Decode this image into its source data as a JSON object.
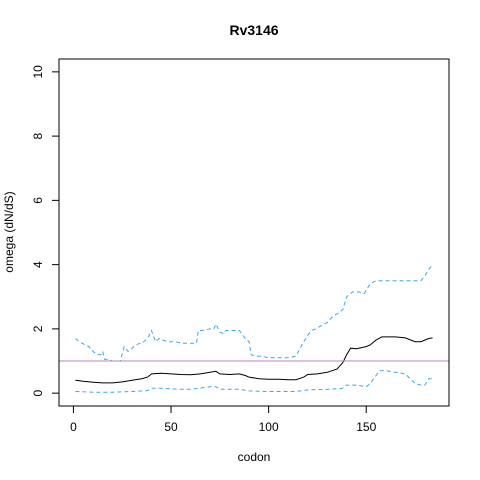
{
  "chart_data": {
    "type": "line",
    "title": "Rv3146",
    "xlabel": "codon",
    "ylabel": "omega (dN/dS)",
    "xlim": [
      0,
      185
    ],
    "ylim": [
      0,
      10
    ],
    "x_ticks": [
      0,
      50,
      100,
      150
    ],
    "y_ticks": [
      0,
      2,
      4,
      6,
      8,
      10
    ],
    "reference_line": {
      "y": 1,
      "color": "#c080c0"
    },
    "series": [
      {
        "style": "dashed",
        "color": "#3ea8e0",
        "points": [
          [
            1,
            1.7
          ],
          [
            3,
            1.6
          ],
          [
            6,
            1.5
          ],
          [
            8,
            1.45
          ],
          [
            10,
            1.3
          ],
          [
            12,
            1.2
          ],
          [
            14,
            1.2
          ],
          [
            15,
            1.3
          ],
          [
            16,
            1.05
          ],
          [
            18,
            1.05
          ],
          [
            20,
            1.0
          ],
          [
            22,
            1.0
          ],
          [
            24,
            1.0
          ],
          [
            26,
            1.45
          ],
          [
            28,
            1.3
          ],
          [
            30,
            1.4
          ],
          [
            32,
            1.5
          ],
          [
            34,
            1.55
          ],
          [
            36,
            1.6
          ],
          [
            38,
            1.7
          ],
          [
            40,
            1.95
          ],
          [
            42,
            1.6
          ],
          [
            44,
            1.7
          ],
          [
            46,
            1.65
          ],
          [
            48,
            1.6
          ],
          [
            52,
            1.6
          ],
          [
            56,
            1.55
          ],
          [
            60,
            1.55
          ],
          [
            63,
            1.55
          ],
          [
            64,
            1.95
          ],
          [
            66,
            1.95
          ],
          [
            70,
            2.0
          ],
          [
            72,
            2.0
          ],
          [
            73,
            2.15
          ],
          [
            75,
            1.9
          ],
          [
            77,
            1.85
          ],
          [
            78,
            1.95
          ],
          [
            80,
            1.95
          ],
          [
            82,
            1.95
          ],
          [
            85,
            1.95
          ],
          [
            88,
            1.7
          ],
          [
            90,
            1.6
          ],
          [
            91,
            1.2
          ],
          [
            93,
            1.15
          ],
          [
            96,
            1.15
          ],
          [
            100,
            1.1
          ],
          [
            105,
            1.1
          ],
          [
            110,
            1.1
          ],
          [
            114,
            1.15
          ],
          [
            117,
            1.5
          ],
          [
            120,
            1.8
          ],
          [
            122,
            1.95
          ],
          [
            124,
            2.0
          ],
          [
            127,
            2.1
          ],
          [
            130,
            2.2
          ],
          [
            133,
            2.4
          ],
          [
            136,
            2.5
          ],
          [
            138,
            2.6
          ],
          [
            140,
            3.0
          ],
          [
            143,
            3.15
          ],
          [
            146,
            3.15
          ],
          [
            149,
            3.1
          ],
          [
            152,
            3.4
          ],
          [
            155,
            3.5
          ],
          [
            160,
            3.5
          ],
          [
            165,
            3.5
          ],
          [
            170,
            3.5
          ],
          [
            175,
            3.5
          ],
          [
            178,
            3.5
          ],
          [
            180,
            3.65
          ],
          [
            182,
            3.85
          ],
          [
            184,
            4.0
          ]
        ]
      },
      {
        "style": "solid",
        "color": "#000000",
        "points": [
          [
            1,
            0.4
          ],
          [
            5,
            0.37
          ],
          [
            10,
            0.34
          ],
          [
            15,
            0.32
          ],
          [
            20,
            0.32
          ],
          [
            25,
            0.35
          ],
          [
            30,
            0.4
          ],
          [
            35,
            0.45
          ],
          [
            38,
            0.5
          ],
          [
            40,
            0.6
          ],
          [
            45,
            0.62
          ],
          [
            50,
            0.6
          ],
          [
            55,
            0.58
          ],
          [
            60,
            0.57
          ],
          [
            65,
            0.6
          ],
          [
            70,
            0.65
          ],
          [
            73,
            0.68
          ],
          [
            75,
            0.6
          ],
          [
            80,
            0.58
          ],
          [
            85,
            0.6
          ],
          [
            88,
            0.55
          ],
          [
            90,
            0.5
          ],
          [
            95,
            0.45
          ],
          [
            100,
            0.43
          ],
          [
            105,
            0.43
          ],
          [
            110,
            0.42
          ],
          [
            114,
            0.42
          ],
          [
            118,
            0.5
          ],
          [
            120,
            0.58
          ],
          [
            125,
            0.6
          ],
          [
            130,
            0.65
          ],
          [
            135,
            0.75
          ],
          [
            138,
            0.95
          ],
          [
            140,
            1.2
          ],
          [
            142,
            1.4
          ],
          [
            145,
            1.38
          ],
          [
            150,
            1.45
          ],
          [
            152,
            1.5
          ],
          [
            155,
            1.65
          ],
          [
            158,
            1.75
          ],
          [
            165,
            1.75
          ],
          [
            170,
            1.72
          ],
          [
            175,
            1.6
          ],
          [
            178,
            1.6
          ],
          [
            182,
            1.7
          ],
          [
            184,
            1.72
          ]
        ]
      },
      {
        "style": "dashed",
        "color": "#3ea8e0",
        "points": [
          [
            1,
            0.05
          ],
          [
            10,
            0.03
          ],
          [
            20,
            0.03
          ],
          [
            30,
            0.05
          ],
          [
            38,
            0.08
          ],
          [
            40,
            0.15
          ],
          [
            45,
            0.15
          ],
          [
            55,
            0.12
          ],
          [
            60,
            0.12
          ],
          [
            64,
            0.15
          ],
          [
            70,
            0.2
          ],
          [
            73,
            0.2
          ],
          [
            75,
            0.12
          ],
          [
            85,
            0.12
          ],
          [
            90,
            0.07
          ],
          [
            100,
            0.05
          ],
          [
            110,
            0.05
          ],
          [
            114,
            0.05
          ],
          [
            120,
            0.1
          ],
          [
            130,
            0.12
          ],
          [
            138,
            0.15
          ],
          [
            140,
            0.25
          ],
          [
            145,
            0.25
          ],
          [
            150,
            0.2
          ],
          [
            152,
            0.3
          ],
          [
            155,
            0.55
          ],
          [
            157,
            0.7
          ],
          [
            160,
            0.7
          ],
          [
            165,
            0.65
          ],
          [
            170,
            0.6
          ],
          [
            175,
            0.3
          ],
          [
            178,
            0.25
          ],
          [
            180,
            0.25
          ],
          [
            182,
            0.45
          ],
          [
            184,
            0.45
          ]
        ]
      }
    ]
  }
}
